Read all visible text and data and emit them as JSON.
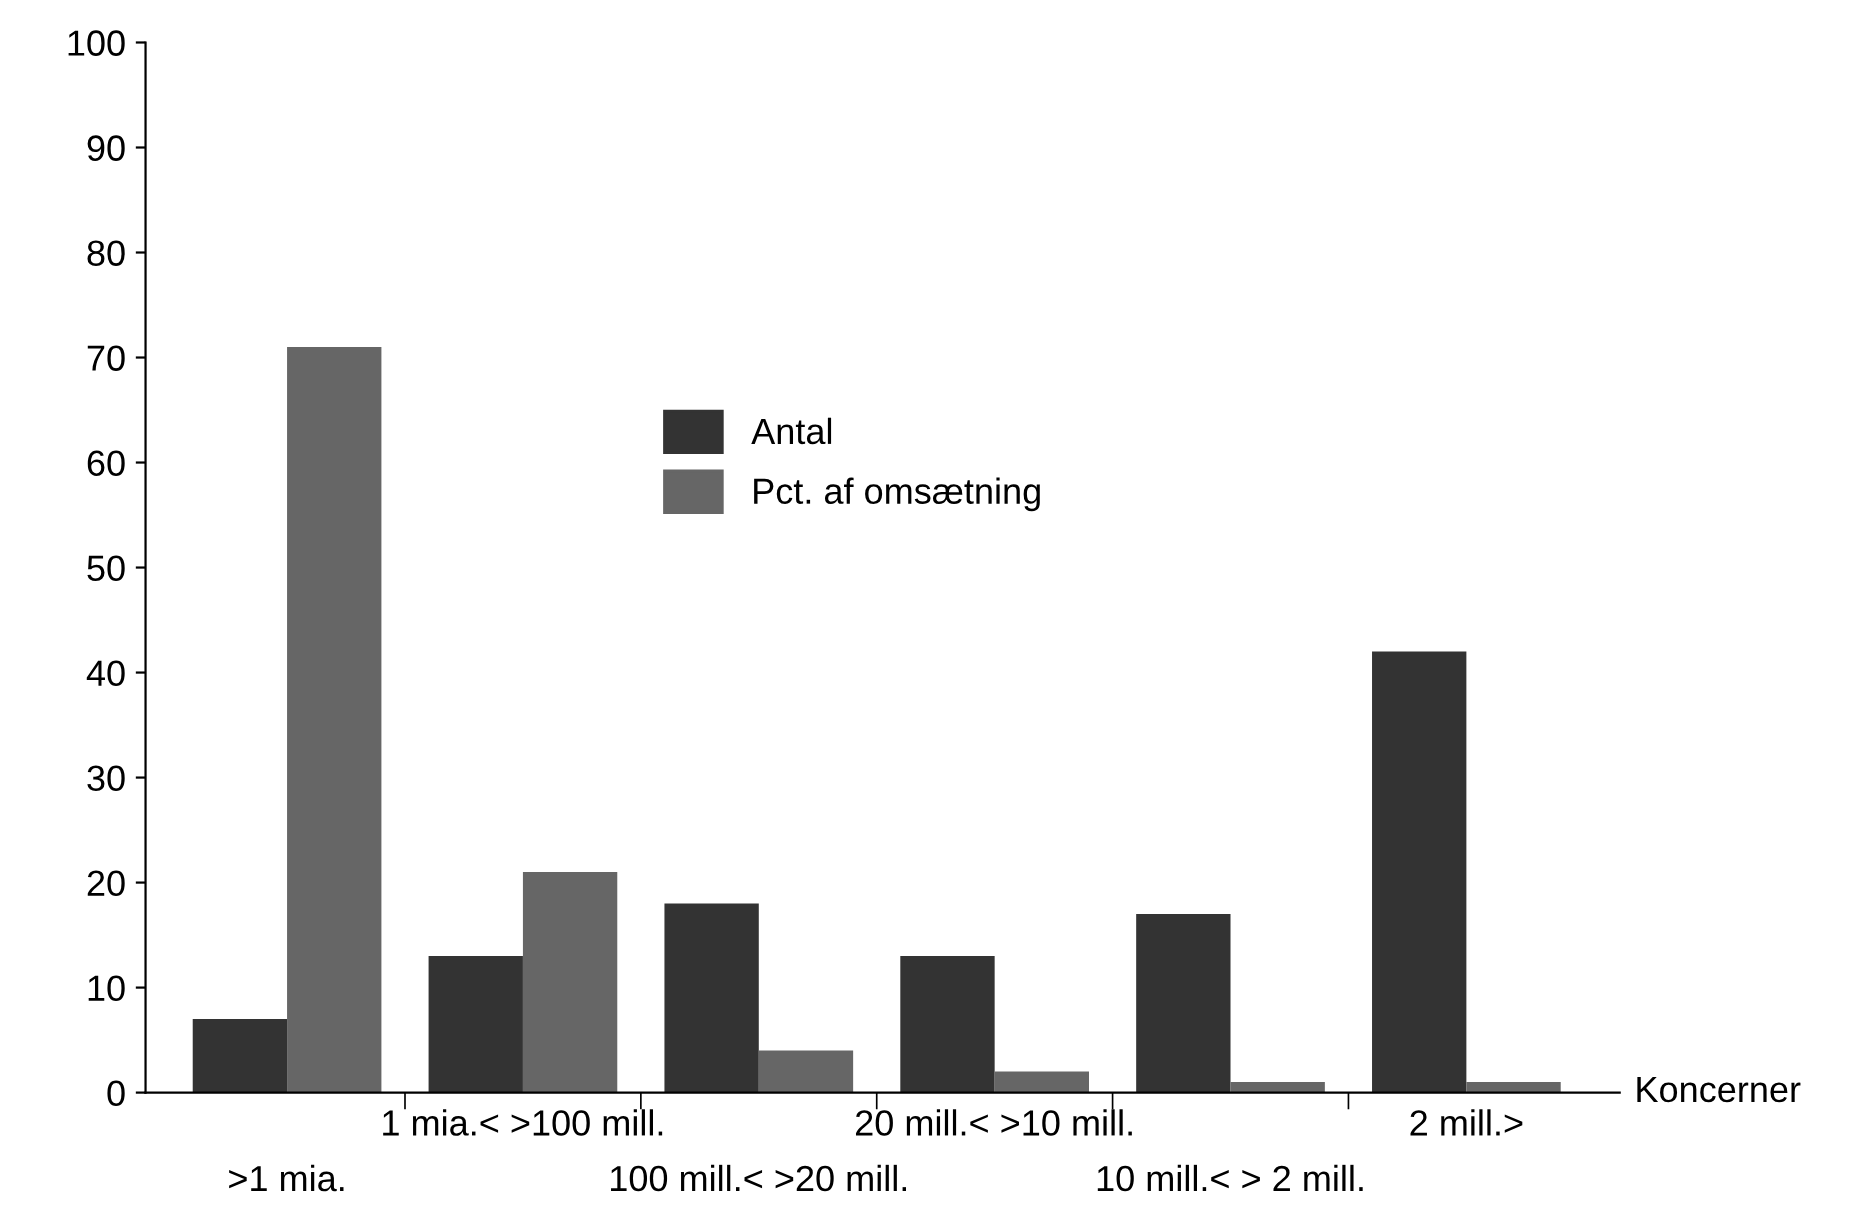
{
  "chart_data": {
    "type": "bar",
    "xlabel": "Koncerner",
    "categories": [
      ">1 mia.",
      "1 mia.< >100 mill.",
      "100 mill.< >20 mill.",
      "20 mill.< >10 mill.",
      "10 mill.< > 2 mill.",
      "2 mill.>"
    ],
    "series": [
      {
        "name": "Antal",
        "color": "#333333",
        "values": [
          7,
          13,
          18,
          13,
          17,
          42
        ]
      },
      {
        "name": "Pct. af omsætning",
        "color": "#666666",
        "values": [
          71,
          21,
          4,
          2,
          1,
          1
        ]
      }
    ],
    "ylim": [
      0,
      100
    ],
    "yticks": [
      0,
      10,
      20,
      30,
      40,
      50,
      60,
      70,
      80,
      90,
      100
    ],
    "grid": false,
    "legend": "top"
  }
}
